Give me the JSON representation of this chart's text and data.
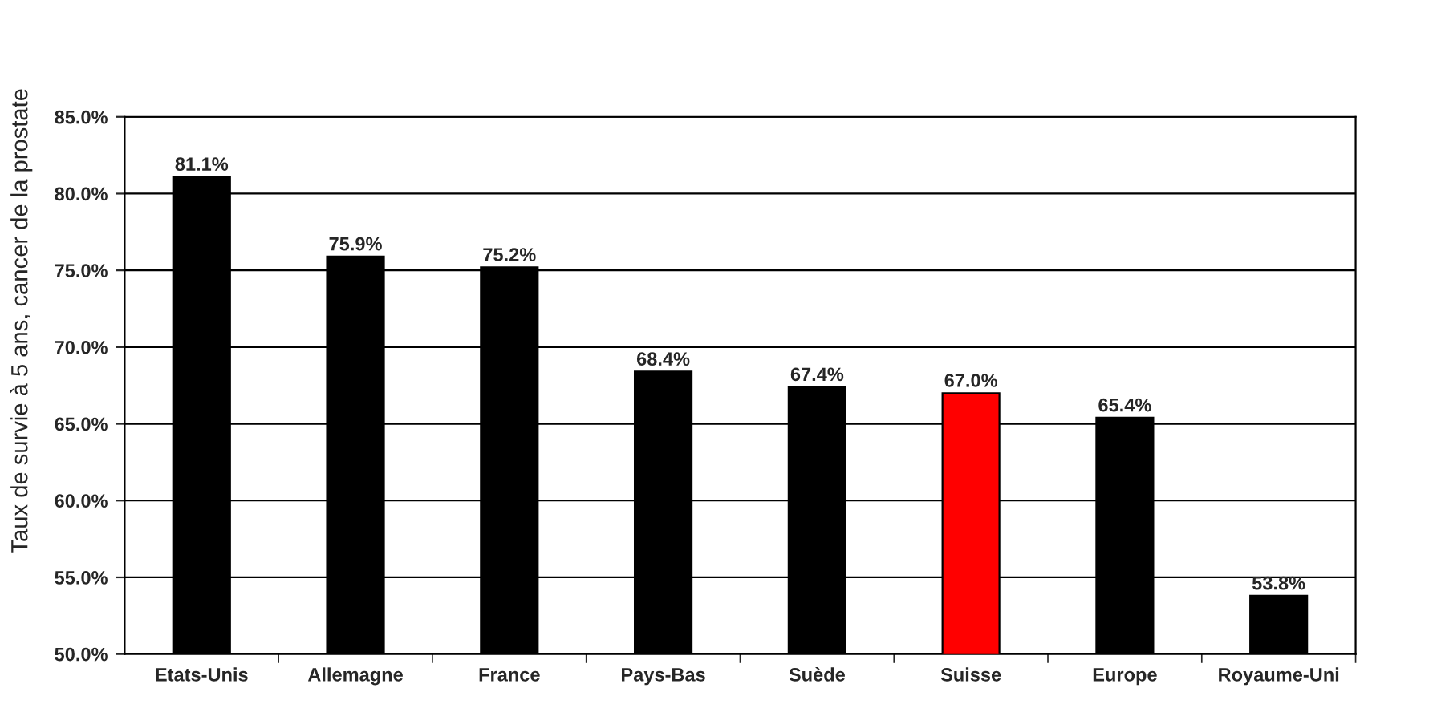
{
  "chart_data": {
    "type": "bar",
    "ylabel": "Taux de survie à 5 ans, cancer de la prostate",
    "categories": [
      "Etats-Unis",
      "Allemagne",
      "France",
      "Pays-Bas",
      "Suède",
      "Suisse",
      "Europe",
      "Royaume-Uni"
    ],
    "values": [
      81.1,
      75.9,
      75.2,
      68.4,
      67.4,
      67.0,
      65.4,
      53.8
    ],
    "colors": [
      "#000000",
      "#000000",
      "#000000",
      "#000000",
      "#000000",
      "#ff0000",
      "#000000",
      "#000000"
    ],
    "value_labels": [
      "81.1%",
      "75.9%",
      "75.2%",
      "68.4%",
      "67.4%",
      "67.0%",
      "65.4%",
      "53.8%"
    ],
    "ylim": [
      50,
      85
    ],
    "yticks": [
      {
        "value": 50,
        "label": "50.0%"
      },
      {
        "value": 55,
        "label": "55.0%"
      },
      {
        "value": 60,
        "label": "60.0%"
      },
      {
        "value": 65,
        "label": "65.0%"
      },
      {
        "value": 70,
        "label": "70.0%"
      },
      {
        "value": 75,
        "label": "75.0%"
      },
      {
        "value": 80,
        "label": "80.0%"
      },
      {
        "value": 85,
        "label": "85.0%"
      }
    ],
    "grid": "y",
    "legend": false
  }
}
